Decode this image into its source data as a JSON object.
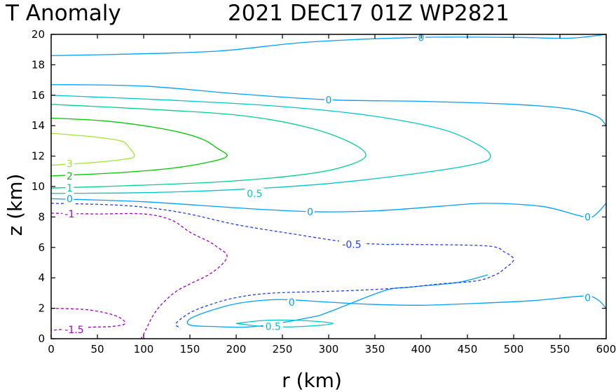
{
  "chart_data": {
    "type": "contour",
    "title_left": "T Anomaly",
    "title_right": "2021 DEC17 01Z  WP2821",
    "xlabel": "r (km)",
    "ylabel": "z (km)",
    "xlim": [
      0,
      600
    ],
    "ylim": [
      0,
      20
    ],
    "xticks": [
      "0",
      "50",
      "100",
      "150",
      "200",
      "250",
      "300",
      "350",
      "400",
      "450",
      "500",
      "550",
      "600"
    ],
    "yticks": [
      "0",
      "2",
      "4",
      "6",
      "8",
      "10",
      "12",
      "14",
      "16",
      "18",
      "20"
    ],
    "grid": false,
    "levels": [
      {
        "level": 3,
        "color": "#a0e632",
        "dashed": false,
        "points": [
          [
            0,
            13.5
          ],
          [
            40,
            13.3
          ],
          [
            75,
            13
          ],
          [
            85,
            12.5
          ],
          [
            90,
            12
          ],
          [
            80,
            11.8
          ],
          [
            50,
            11.6
          ],
          [
            0,
            11.4
          ]
        ]
      },
      {
        "level": 2,
        "color": "#00c800",
        "dashed": false,
        "points": [
          [
            0,
            14.5
          ],
          [
            60,
            14.3
          ],
          [
            120,
            13.8
          ],
          [
            160,
            13.2
          ],
          [
            180,
            12.5
          ],
          [
            190,
            12
          ],
          [
            170,
            11.6
          ],
          [
            130,
            11.2
          ],
          [
            70,
            10.9
          ],
          [
            0,
            10.7
          ]
        ]
      },
      {
        "level": 1,
        "color": "#00d28c",
        "dashed": false,
        "points": [
          [
            0,
            15.4
          ],
          [
            100,
            15.1
          ],
          [
            200,
            14.7
          ],
          [
            270,
            14
          ],
          [
            320,
            13
          ],
          [
            340,
            12
          ],
          [
            310,
            11.2
          ],
          [
            260,
            10.7
          ],
          [
            180,
            10.3
          ],
          [
            80,
            10.05
          ],
          [
            0,
            9.9
          ]
        ]
      },
      {
        "level": 0.5,
        "color": "#00c8c8",
        "dashed": false,
        "points": [
          [
            0,
            16
          ],
          [
            120,
            15.7
          ],
          [
            240,
            15.3
          ],
          [
            340,
            14.7
          ],
          [
            420,
            13.8
          ],
          [
            460,
            12.8
          ],
          [
            475,
            12
          ],
          [
            460,
            11.5
          ],
          [
            400,
            10.9
          ],
          [
            300,
            10.2
          ],
          [
            200,
            9.8
          ],
          [
            100,
            9.6
          ],
          [
            0,
            9.55
          ]
        ]
      },
      {
        "level": 0,
        "color": "#00a0ff",
        "dashed": false,
        "points": [
          [
            0,
            18.6
          ],
          [
            80,
            18.7
          ],
          [
            180,
            18.9
          ],
          [
            280,
            19.5
          ],
          [
            400,
            19.8
          ],
          [
            500,
            19.8
          ],
          [
            560,
            19.75
          ],
          [
            600,
            20
          ]
        ]
      },
      {
        "level": 0,
        "color": "#00a0ff",
        "dashed": false,
        "points": [
          [
            0,
            16.7
          ],
          [
            100,
            16.6
          ],
          [
            200,
            16.1
          ],
          [
            300,
            15.7
          ],
          [
            400,
            15.6
          ],
          [
            500,
            15.4
          ],
          [
            560,
            15.1
          ],
          [
            590,
            14.6
          ],
          [
            600,
            14
          ]
        ]
      },
      {
        "level": 0,
        "color": "#00a0ff",
        "dashed": false,
        "points": [
          [
            0,
            9.2
          ],
          [
            100,
            9.0
          ],
          [
            200,
            8.6
          ],
          [
            280,
            8.35
          ],
          [
            350,
            8.4
          ],
          [
            420,
            8.7
          ],
          [
            470,
            8.9
          ],
          [
            530,
            8.7
          ],
          [
            570,
            8.1
          ],
          [
            585,
            8.0
          ],
          [
            600,
            8.9
          ]
        ]
      },
      {
        "level": 0,
        "color": "#00a0ff",
        "dashed": false,
        "points": [
          [
            600,
            2.0
          ],
          [
            590,
            2.6
          ],
          [
            575,
            2.8
          ],
          [
            520,
            2.5
          ],
          [
            450,
            2.3
          ],
          [
            400,
            2.2
          ],
          [
            350,
            2.25
          ],
          [
            300,
            2.4
          ],
          [
            260,
            2.55
          ],
          [
            235,
            2.55
          ],
          [
            200,
            2.3
          ],
          [
            170,
            1.8
          ],
          [
            150,
            1.3
          ],
          [
            150,
            0.9
          ],
          [
            175,
            0.8
          ],
          [
            220,
            0.8
          ],
          [
            280,
            1.4
          ],
          [
            300,
            1.75
          ],
          [
            360,
            3.15
          ],
          [
            390,
            3.4
          ],
          [
            440,
            3.7
          ],
          [
            472,
            4.2
          ]
        ]
      },
      {
        "level": 0.5,
        "color": "#00c8c8",
        "dashed": false,
        "points": [
          [
            200,
            1.0
          ],
          [
            230,
            1.2
          ],
          [
            270,
            1.2
          ],
          [
            305,
            1.0
          ],
          [
            270,
            0.8
          ],
          [
            230,
            0.8
          ],
          [
            200,
            1.0
          ]
        ]
      },
      {
        "level": -0.5,
        "color": "#1e3cff",
        "dashed": true,
        "points": [
          [
            0,
            8.9
          ],
          [
            80,
            8.75
          ],
          [
            140,
            8.3
          ],
          [
            200,
            7.5
          ],
          [
            260,
            6.9
          ],
          [
            320,
            6.35
          ],
          [
            360,
            6.2
          ],
          [
            380,
            6.2
          ],
          [
            470,
            6.1
          ],
          [
            490,
            5.7
          ],
          [
            500,
            5.2
          ],
          [
            490,
            4.6
          ],
          [
            480,
            4.2
          ],
          [
            460,
            3.8
          ],
          [
            420,
            3.6
          ],
          [
            380,
            3.35
          ],
          [
            320,
            3.15
          ],
          [
            240,
            3.0
          ],
          [
            200,
            2.7
          ],
          [
            170,
            2.2
          ],
          [
            150,
            1.7
          ],
          [
            135,
            1.0
          ],
          [
            140,
            0.7
          ]
        ]
      },
      {
        "level": -1,
        "color": "#a000c8",
        "dashed": true,
        "points": [
          [
            0,
            8.25
          ],
          [
            50,
            8.2
          ],
          [
            100,
            8.2
          ],
          [
            130,
            7.8
          ],
          [
            150,
            7.0
          ],
          [
            170,
            6.4
          ],
          [
            180,
            6.0
          ],
          [
            190,
            5.5
          ],
          [
            185,
            4.9
          ],
          [
            170,
            4.2
          ],
          [
            150,
            3.6
          ],
          [
            135,
            3.1
          ],
          [
            120,
            2.3
          ],
          [
            110,
            1.5
          ],
          [
            100,
            0.3
          ],
          [
            97,
            0
          ]
        ]
      },
      {
        "level": -1.5,
        "color": "#a000c8",
        "dashed": true,
        "points": [
          [
            0,
            2.0
          ],
          [
            40,
            1.9
          ],
          [
            70,
            1.5
          ],
          [
            80,
            1.0
          ],
          [
            65,
            0.8
          ],
          [
            40,
            0.75
          ],
          [
            0,
            0.55
          ]
        ]
      }
    ],
    "contour_labels": [
      {
        "text": "3",
        "x": 20,
        "y": 11.5,
        "color": "#a0e632"
      },
      {
        "text": "2",
        "x": 20,
        "y": 10.7,
        "color": "#00c800"
      },
      {
        "text": "1",
        "x": 20,
        "y": 9.9,
        "color": "#00d28c"
      },
      {
        "text": "0",
        "x": 20,
        "y": 9.2,
        "color": "#00a0ff"
      },
      {
        "text": "0.5",
        "x": 220,
        "y": 9.55,
        "color": "#00c8c8"
      },
      {
        "text": "0",
        "x": 300,
        "y": 15.7,
        "color": "#00a0ff"
      },
      {
        "text": "0",
        "x": 400,
        "y": 19.8,
        "color": "#00a0ff"
      },
      {
        "text": "0",
        "x": 280,
        "y": 8.35,
        "color": "#00a0ff"
      },
      {
        "text": "0",
        "x": 580,
        "y": 8.0,
        "color": "#00a0ff"
      },
      {
        "text": "0",
        "x": 580,
        "y": 2.7,
        "color": "#00a0ff"
      },
      {
        "text": "0",
        "x": 260,
        "y": 2.4,
        "color": "#00a0ff"
      },
      {
        "text": "0.5",
        "x": 240,
        "y": 0.8,
        "color": "#00c8c8"
      },
      {
        "text": "-0.5",
        "x": 325,
        "y": 6.2,
        "color": "#1e3cff"
      },
      {
        "text": "-1",
        "x": 20,
        "y": 8.2,
        "color": "#a000c8"
      },
      {
        "text": "-1.5",
        "x": 25,
        "y": 0.6,
        "color": "#a000c8"
      }
    ]
  }
}
